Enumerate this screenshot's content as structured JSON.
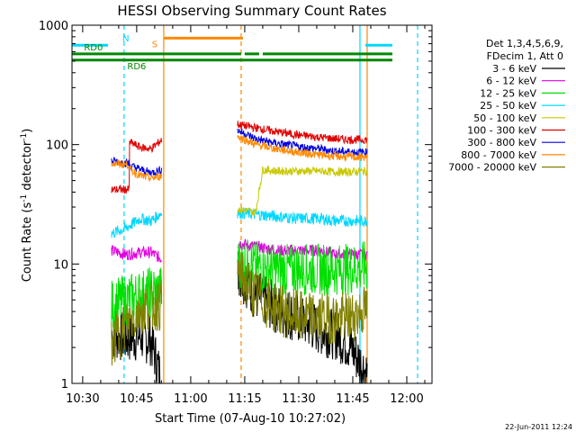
{
  "chart_data": {
    "type": "line",
    "title": "HESSI Observing Summary Count Rates",
    "xlabel": "Start Time (07-Aug-10 10:27:02)",
    "ylabel": "Count Rate (s⁻¹ detector⁻¹)",
    "ylabel_main": "Count Rate (s",
    "ylabel_sup1": "-1",
    "ylabel_mid": " detector",
    "ylabel_sup2": "-1",
    "ylabel_end": ")",
    "y_scale": "log",
    "ylim": [
      1,
      1000
    ],
    "xlim": [
      "10:27:02",
      "12:07:00"
    ],
    "x_ticks": [
      "10:30",
      "10:45",
      "11:00",
      "11:15",
      "11:30",
      "11:45",
      "12:00"
    ],
    "x_tick_min": [
      30,
      45,
      60,
      75,
      90,
      105,
      120
    ],
    "y_ticks": [
      "1",
      "10",
      "100",
      "1000"
    ],
    "y_tick_vals": [
      1,
      10,
      100,
      1000
    ],
    "grid": false,
    "legend_position": "right",
    "legend_header": [
      "Det 1,3,4,5,6,9,",
      "FDecim 1, Att 0"
    ],
    "series": [
      {
        "name": "3 - 6 keV",
        "color": "#000000",
        "data": [
          [
            38,
            2.6
          ],
          [
            42,
            2.4
          ],
          [
            46,
            2.5
          ],
          [
            49,
            2.3
          ],
          [
            52,
            1.0
          ],
          [
            73,
            9.0
          ],
          [
            78,
            5.5
          ],
          [
            84,
            4.2
          ],
          [
            90,
            3.5
          ],
          [
            96,
            2.8
          ],
          [
            100,
            2.6
          ],
          [
            104,
            2.1
          ],
          [
            109,
            1.2
          ]
        ]
      },
      {
        "name": "6 - 12 keV",
        "color": "#e000e0",
        "data": [
          [
            38,
            13
          ],
          [
            42,
            12
          ],
          [
            46,
            12.5
          ],
          [
            49,
            12.5
          ],
          [
            52,
            11
          ],
          [
            73,
            15
          ],
          [
            78,
            14
          ],
          [
            84,
            13
          ],
          [
            90,
            13
          ],
          [
            96,
            13
          ],
          [
            100,
            12
          ],
          [
            104,
            12
          ],
          [
            109,
            12
          ]
        ]
      },
      {
        "name": "12 - 25 keV",
        "color": "#00e000",
        "data": [
          [
            38,
            4.5
          ],
          [
            42,
            5
          ],
          [
            46,
            5.5
          ],
          [
            49,
            5.8
          ],
          [
            52,
            6
          ],
          [
            73,
            10.5
          ],
          [
            78,
            9.5
          ],
          [
            84,
            9
          ],
          [
            90,
            9
          ],
          [
            96,
            9
          ],
          [
            100,
            9
          ],
          [
            104,
            9
          ],
          [
            109,
            9.5
          ]
        ]
      },
      {
        "name": "25 - 50 keV",
        "color": "#00d8ff",
        "data": [
          [
            38,
            18
          ],
          [
            42,
            20
          ],
          [
            46,
            24
          ],
          [
            49,
            23
          ],
          [
            52,
            27
          ],
          [
            73,
            27
          ],
          [
            78,
            26
          ],
          [
            84,
            25
          ],
          [
            90,
            24
          ],
          [
            96,
            24
          ],
          [
            100,
            23
          ],
          [
            104,
            23
          ],
          [
            109,
            23
          ]
        ]
      },
      {
        "name": "50 - 100 keV",
        "color": "#c8c800",
        "data": [
          [
            73,
            29
          ],
          [
            78,
            27
          ],
          [
            80,
            62
          ],
          [
            84,
            60
          ],
          [
            90,
            60
          ],
          [
            96,
            60
          ],
          [
            100,
            59
          ],
          [
            104,
            59
          ],
          [
            109,
            60
          ]
        ]
      },
      {
        "name": "100 - 300 keV",
        "color": "#e00000",
        "data": [
          [
            38,
            42
          ],
          [
            42,
            42
          ],
          [
            43,
            105
          ],
          [
            46,
            95
          ],
          [
            49,
            92
          ],
          [
            52,
            110
          ],
          [
            73,
            148
          ],
          [
            78,
            138
          ],
          [
            84,
            128
          ],
          [
            90,
            120
          ],
          [
            96,
            115
          ],
          [
            100,
            112
          ],
          [
            104,
            110
          ],
          [
            109,
            110
          ]
        ]
      },
      {
        "name": "300 - 800 keV",
        "color": "#0000e0",
        "data": [
          [
            38,
            73
          ],
          [
            42,
            70
          ],
          [
            43,
            67
          ],
          [
            46,
            62
          ],
          [
            49,
            58
          ],
          [
            52,
            62
          ],
          [
            73,
            132
          ],
          [
            78,
            112
          ],
          [
            84,
            102
          ],
          [
            90,
            96
          ],
          [
            96,
            92
          ],
          [
            100,
            88
          ],
          [
            104,
            87
          ],
          [
            109,
            86
          ]
        ]
      },
      {
        "name": "800 - 7000 keV",
        "color": "#ff8800",
        "data": [
          [
            38,
            70
          ],
          [
            42,
            68
          ],
          [
            43,
            62
          ],
          [
            46,
            55
          ],
          [
            49,
            52
          ],
          [
            52,
            55
          ],
          [
            73,
            118
          ],
          [
            78,
            100
          ],
          [
            84,
            92
          ],
          [
            90,
            86
          ],
          [
            96,
            82
          ],
          [
            100,
            80
          ],
          [
            104,
            79
          ],
          [
            109,
            78
          ]
        ]
      },
      {
        "name": "7000 - 20000 keV",
        "color": "#808000",
        "data": [
          [
            38,
            2.2
          ],
          [
            42,
            3.0
          ],
          [
            46,
            4.2
          ],
          [
            49,
            4.5
          ],
          [
            52,
            4.5
          ],
          [
            73,
            8.5
          ],
          [
            78,
            5.5
          ],
          [
            84,
            4.2
          ],
          [
            90,
            3.6
          ],
          [
            96,
            3.5
          ],
          [
            100,
            3.5
          ],
          [
            104,
            3.5
          ],
          [
            109,
            4.2
          ]
        ]
      }
    ],
    "state_bars": [
      {
        "label": "N",
        "color": "#00d8ff",
        "level": 680,
        "segments": [
          [
            27.0,
            37.0
          ],
          [
            108.5,
            116.0
          ]
        ],
        "label_min": 42
      },
      {
        "label": "S",
        "color": "#ff8800",
        "level": 780,
        "segments": [
          [
            52.5,
            74.5
          ]
        ],
        "label_min": 50
      },
      {
        "label": "RD0",
        "color": "#008800",
        "level": 575,
        "segments": [
          [
            27.0,
            74.0
          ],
          [
            75.0,
            79.0
          ],
          [
            80.0,
            116.0
          ]
        ],
        "label_min": 33
      },
      {
        "label": "RD6",
        "color": "#008800",
        "level": 510,
        "segments": [
          [
            27.0,
            116.0
          ]
        ],
        "label_min": 45
      }
    ],
    "vlines": [
      {
        "min": 27.0,
        "color": "#00d8ff",
        "style": "solid"
      },
      {
        "min": 41.5,
        "color": "#00d8ff",
        "style": "dashed"
      },
      {
        "min": 52.5,
        "color": "#ff8800",
        "style": "solid"
      },
      {
        "min": 74.0,
        "color": "#ff8800",
        "style": "dashed"
      },
      {
        "min": 107.0,
        "color": "#00d8ff",
        "style": "solid"
      },
      {
        "min": 109.0,
        "color": "#ff8800",
        "style": "solid"
      },
      {
        "min": 123.0,
        "color": "#00d8ff",
        "style": "dashed"
      }
    ]
  },
  "footer": {
    "date": "22-Jun-2011 12:24"
  }
}
